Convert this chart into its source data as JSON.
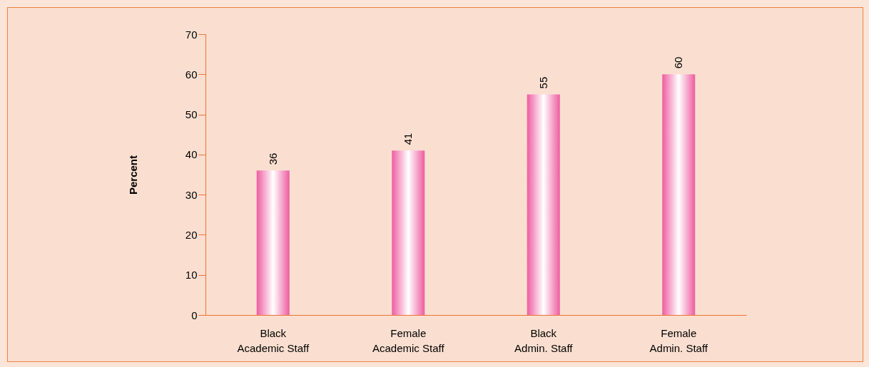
{
  "chart_data": {
    "type": "bar",
    "ylabel": "Percent",
    "categories": [
      "Black Academic Staff",
      "Female Academic Staff",
      "Black Admin. Staff",
      "Female Admin. Staff"
    ],
    "values": [
      36,
      41,
      55,
      60
    ],
    "color": "#ee5ca0",
    "ylim": [
      0,
      70
    ],
    "yticks": [
      0,
      10,
      20,
      30,
      40,
      50,
      60,
      70
    ],
    "data_labels": true,
    "grid": false
  }
}
